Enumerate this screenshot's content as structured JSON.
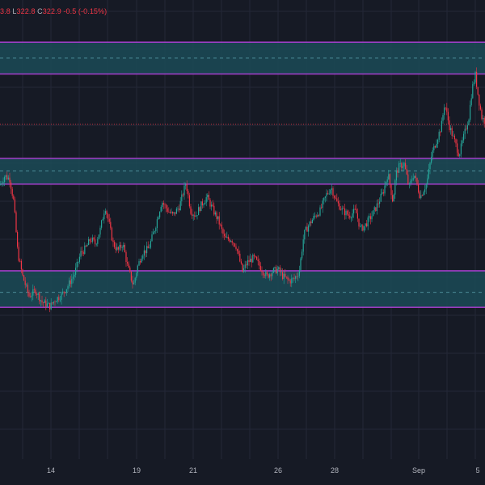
{
  "legend": {
    "open_value": "3.8",
    "low_label": "L",
    "low_value": "322.8",
    "close_label": "C",
    "close_value": "322.9",
    "change": "-0.5 (-0.15%)"
  },
  "colors": {
    "background": "#161a25",
    "grid": "#242838",
    "up": "#26a69a",
    "down": "#f23645",
    "zone_fill": "#1b4b57",
    "zone_border": "#b03fd6",
    "zone_mid": "#4a8a96",
    "last_price_line": "#f23645"
  },
  "chart_data": {
    "type": "candlestick",
    "x_tick_labels": [
      "14",
      "19",
      "21",
      "26",
      "28",
      "Sep",
      "5"
    ],
    "y_range": [
      257,
      355
    ],
    "last_price": 328.5,
    "zones": [
      {
        "top": 346,
        "bottom": 339.2,
        "mid": 342.6
      },
      {
        "top": 321.2,
        "bottom": 315.7,
        "mid": 318.5
      },
      {
        "top": 297.2,
        "bottom": 289.4,
        "mid": 292.6
      }
    ],
    "path": [
      [
        0,
        315.5
      ],
      [
        6,
        317.5
      ],
      [
        12,
        316.8
      ],
      [
        17,
        312
      ],
      [
        22,
        301
      ],
      [
        28,
        296
      ],
      [
        36,
        291.8
      ],
      [
        44,
        293
      ],
      [
        52,
        290.5
      ],
      [
        58,
        290
      ],
      [
        62,
        289.6
      ],
      [
        68,
        291
      ],
      [
        76,
        292
      ],
      [
        84,
        294
      ],
      [
        92,
        296.5
      ],
      [
        100,
        301
      ],
      [
        106,
        302
      ],
      [
        112,
        304
      ],
      [
        118,
        303
      ],
      [
        124,
        306
      ],
      [
        130,
        311
      ],
      [
        134,
        308
      ],
      [
        140,
        303
      ],
      [
        146,
        301.5
      ],
      [
        152,
        303
      ],
      [
        158,
        298
      ],
      [
        165,
        294
      ],
      [
        170,
        298
      ],
      [
        176,
        301
      ],
      [
        184,
        302
      ],
      [
        192,
        306.5
      ],
      [
        200,
        312
      ],
      [
        208,
        310
      ],
      [
        214,
        309
      ],
      [
        222,
        311
      ],
      [
        230,
        316
      ],
      [
        236,
        310
      ],
      [
        242,
        309
      ],
      [
        248,
        311
      ],
      [
        256,
        313
      ],
      [
        264,
        310
      ],
      [
        270,
        308
      ],
      [
        278,
        304
      ],
      [
        286,
        304
      ],
      [
        292,
        302.5
      ],
      [
        300,
        297
      ],
      [
        306,
        299
      ],
      [
        314,
        300
      ],
      [
        322,
        298
      ],
      [
        330,
        296
      ],
      [
        336,
        297
      ],
      [
        344,
        297.5
      ],
      [
        350,
        296
      ],
      [
        358,
        295
      ],
      [
        364,
        295.5
      ],
      [
        370,
        297
      ],
      [
        376,
        305
      ],
      [
        382,
        307
      ],
      [
        390,
        309
      ],
      [
        396,
        310
      ],
      [
        404,
        313.5
      ],
      [
        410,
        315
      ],
      [
        416,
        312
      ],
      [
        424,
        310
      ],
      [
        432,
        309
      ],
      [
        440,
        310
      ],
      [
        446,
        306
      ],
      [
        452,
        307
      ],
      [
        460,
        309
      ],
      [
        466,
        311
      ],
      [
        474,
        314
      ],
      [
        480,
        318
      ],
      [
        486,
        312
      ],
      [
        490,
        318
      ],
      [
        494,
        319.5
      ],
      [
        500,
        320
      ],
      [
        506,
        315
      ],
      [
        512,
        318
      ],
      [
        520,
        313
      ],
      [
        528,
        316
      ],
      [
        534,
        322
      ],
      [
        540,
        325
      ],
      [
        546,
        328
      ],
      [
        550,
        333
      ],
      [
        556,
        328
      ],
      [
        562,
        325
      ],
      [
        568,
        322
      ],
      [
        574,
        326
      ],
      [
        580,
        330
      ],
      [
        584,
        336
      ],
      [
        588,
        339
      ],
      [
        592,
        334
      ],
      [
        596,
        330
      ],
      [
        600,
        329
      ]
    ]
  }
}
